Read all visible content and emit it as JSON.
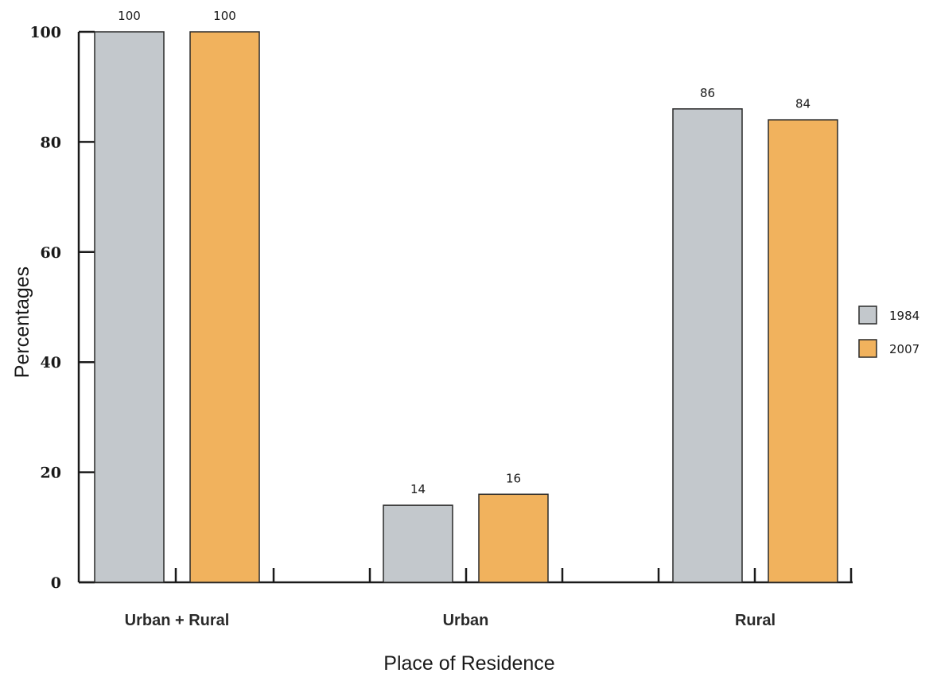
{
  "chart_data": {
    "type": "bar",
    "title": "",
    "xlabel": "Place of Residence",
    "ylabel": "Percentages",
    "ylim": [
      0,
      100
    ],
    "yticks": [
      "0",
      "20",
      "40",
      "60",
      "80",
      "100"
    ],
    "categories": [
      "Urban + Rural",
      "Urban",
      "Rural"
    ],
    "series": [
      {
        "name": "1984",
        "color": "#c3c8cc",
        "values": [
          100,
          14,
          86
        ],
        "labels": [
          "100",
          "14",
          "86"
        ]
      },
      {
        "name": "2007",
        "color": "#f1b25d",
        "values": [
          100,
          16,
          84
        ],
        "labels": [
          "100",
          "16",
          "84"
        ]
      }
    ],
    "legend_position": "right",
    "grid": false
  }
}
